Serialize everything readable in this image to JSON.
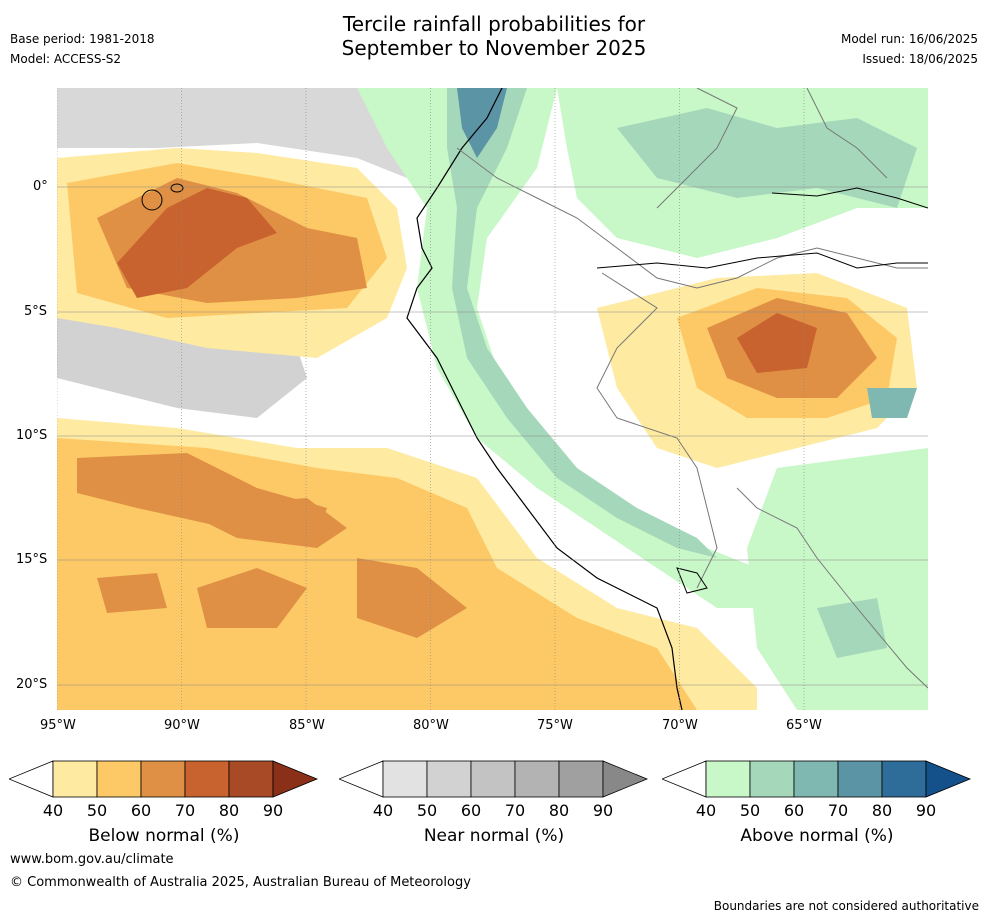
{
  "title_line1": "Tercile rainfall probabilities for",
  "title_line2": "September to November 2025",
  "meta": {
    "base_period": "Base period: 1981-2018",
    "model": "Model: ACCESS-S2",
    "model_run": "Model run: 16/06/2025",
    "issued": "Issued: 18/06/2025"
  },
  "map": {
    "lon_ticks": [
      "95°W",
      "90°W",
      "85°W",
      "80°W",
      "75°W",
      "70°W",
      "65°W"
    ],
    "lat_ticks": [
      "0°",
      "5°S",
      "10°S",
      "15°S",
      "20°S"
    ]
  },
  "legends": [
    {
      "title": "Below normal (%)",
      "ticks": [
        "40",
        "50",
        "60",
        "70",
        "80",
        "90"
      ],
      "colors": [
        "#ffffff",
        "#feeaa0",
        "#fdc966",
        "#df9044",
        "#c86330",
        "#a84a26",
        "#8a3018"
      ]
    },
    {
      "title": "Near normal (%)",
      "ticks": [
        "40",
        "50",
        "60",
        "70",
        "80",
        "90"
      ],
      "colors": [
        "#ffffff",
        "#e2e2e2",
        "#d2d2d2",
        "#c3c3c3",
        "#b3b3b3",
        "#a0a0a0",
        "#888888"
      ]
    },
    {
      "title": "Above normal (%)",
      "ticks": [
        "40",
        "50",
        "60",
        "70",
        "80",
        "90"
      ],
      "colors": [
        "#ffffff",
        "#c8f7c8",
        "#a5d8bb",
        "#7eb8b0",
        "#5b94a4",
        "#2e6d99",
        "#14508a"
      ]
    }
  ],
  "footer": {
    "url": "www.bom.gov.au/climate",
    "copyright": "© Commonwealth of Australia 2025, Australian Bureau of Meteorology",
    "note": "Boundaries are not considered authoritative"
  }
}
